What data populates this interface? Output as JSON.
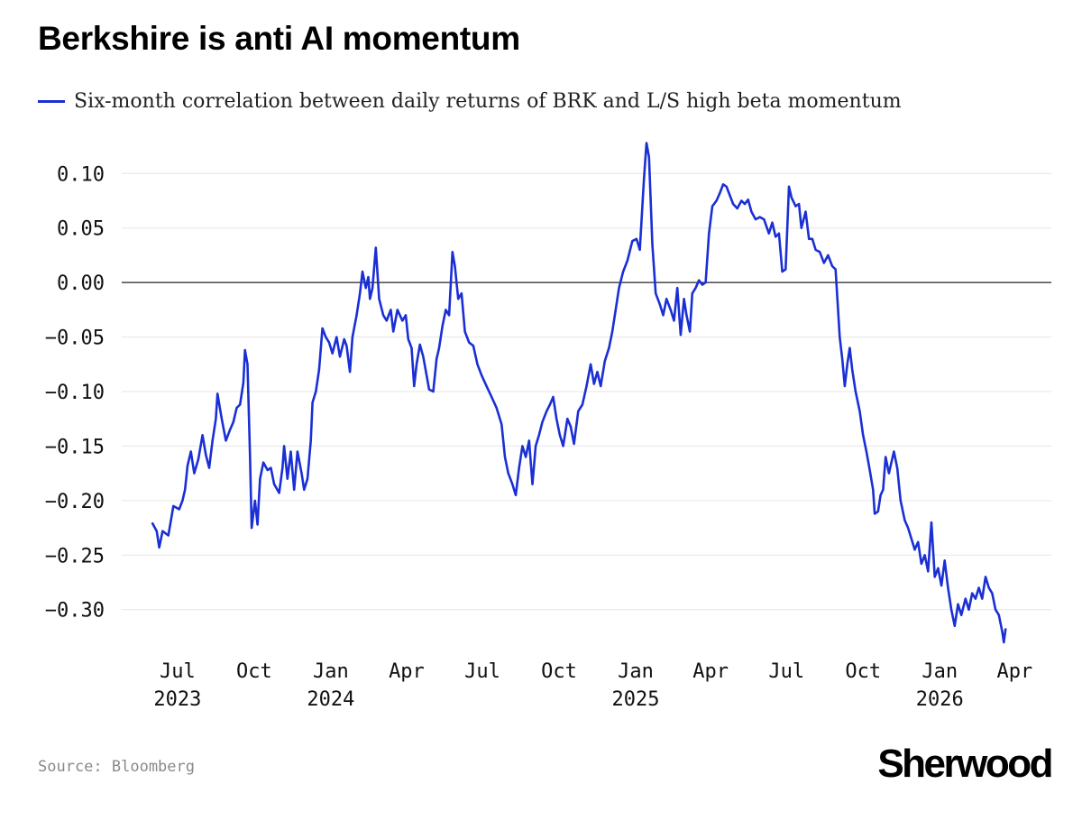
{
  "chart_data": {
    "type": "line",
    "title": "Berkshire is anti AI momentum",
    "xlabel": "",
    "ylabel": "",
    "ylim": [
      -0.335,
      0.135
    ],
    "xlim": [
      "2023-04-25",
      "2026-05-15"
    ],
    "y_ticks": [
      "0.10",
      "0.05",
      "0.00",
      "−0.05",
      "−0.10",
      "−0.15",
      "−0.20",
      "−0.25",
      "−0.30"
    ],
    "y_tick_values": [
      0.1,
      0.05,
      0.0,
      -0.05,
      -0.1,
      -0.15,
      -0.2,
      -0.25,
      -0.3
    ],
    "x_ticks": [
      {
        "date": "2023-07-01",
        "month": "Jul",
        "year": "2023"
      },
      {
        "date": "2023-10-01",
        "month": "Oct",
        "year": ""
      },
      {
        "date": "2024-01-01",
        "month": "Jan",
        "year": "2024"
      },
      {
        "date": "2024-04-01",
        "month": "Apr",
        "year": ""
      },
      {
        "date": "2024-07-01",
        "month": "Jul",
        "year": ""
      },
      {
        "date": "2024-10-01",
        "month": "Oct",
        "year": ""
      },
      {
        "date": "2025-01-01",
        "month": "Jan",
        "year": "2025"
      },
      {
        "date": "2025-04-01",
        "month": "Apr",
        "year": ""
      },
      {
        "date": "2025-07-01",
        "month": "Jul",
        "year": ""
      },
      {
        "date": "2025-10-01",
        "month": "Oct",
        "year": ""
      },
      {
        "date": "2026-01-01",
        "month": "Jan",
        "year": "2026"
      },
      {
        "date": "2026-04-01",
        "month": "Apr",
        "year": ""
      }
    ],
    "grid": true,
    "zero_line": true,
    "legend_position": "top-left",
    "series": [
      {
        "name": "Six-month correlation between daily returns of BRK and L/S high beta momentum",
        "color": "#1a2fd4",
        "points": [
          [
            "2023-06-01",
            -0.221
          ],
          [
            "2023-06-06",
            -0.228
          ],
          [
            "2023-06-09",
            -0.243
          ],
          [
            "2023-06-13",
            -0.228
          ],
          [
            "2023-06-20",
            -0.232
          ],
          [
            "2023-06-26",
            -0.205
          ],
          [
            "2023-07-03",
            -0.208
          ],
          [
            "2023-07-07",
            -0.2
          ],
          [
            "2023-07-10",
            -0.19
          ],
          [
            "2023-07-13",
            -0.168
          ],
          [
            "2023-07-17",
            -0.155
          ],
          [
            "2023-07-21",
            -0.175
          ],
          [
            "2023-07-26",
            -0.162
          ],
          [
            "2023-07-31",
            -0.14
          ],
          [
            "2023-08-04",
            -0.158
          ],
          [
            "2023-08-08",
            -0.17
          ],
          [
            "2023-08-12",
            -0.145
          ],
          [
            "2023-08-16",
            -0.125
          ],
          [
            "2023-08-18",
            -0.102
          ],
          [
            "2023-08-23",
            -0.125
          ],
          [
            "2023-08-28",
            -0.145
          ],
          [
            "2023-09-02",
            -0.135
          ],
          [
            "2023-09-06",
            -0.128
          ],
          [
            "2023-09-10",
            -0.115
          ],
          [
            "2023-09-14",
            -0.112
          ],
          [
            "2023-09-18",
            -0.092
          ],
          [
            "2023-09-20",
            -0.062
          ],
          [
            "2023-09-23",
            -0.075
          ],
          [
            "2023-09-26",
            -0.16
          ],
          [
            "2023-09-28",
            -0.225
          ],
          [
            "2023-10-02",
            -0.2
          ],
          [
            "2023-10-05",
            -0.222
          ],
          [
            "2023-10-08",
            -0.18
          ],
          [
            "2023-10-12",
            -0.165
          ],
          [
            "2023-10-17",
            -0.172
          ],
          [
            "2023-10-21",
            -0.17
          ],
          [
            "2023-10-25",
            -0.185
          ],
          [
            "2023-10-31",
            -0.193
          ],
          [
            "2023-11-04",
            -0.17
          ],
          [
            "2023-11-06",
            -0.15
          ],
          [
            "2023-11-10",
            -0.18
          ],
          [
            "2023-11-14",
            -0.155
          ],
          [
            "2023-11-18",
            -0.19
          ],
          [
            "2023-11-22",
            -0.155
          ],
          [
            "2023-11-27",
            -0.175
          ],
          [
            "2023-11-30",
            -0.19
          ],
          [
            "2023-12-04",
            -0.18
          ],
          [
            "2023-12-08",
            -0.145
          ],
          [
            "2023-12-10",
            -0.11
          ],
          [
            "2023-12-14",
            -0.1
          ],
          [
            "2023-12-18",
            -0.08
          ],
          [
            "2023-12-22",
            -0.042
          ],
          [
            "2023-12-26",
            -0.05
          ],
          [
            "2023-12-30",
            -0.055
          ],
          [
            "2024-01-03",
            -0.065
          ],
          [
            "2024-01-08",
            -0.05
          ],
          [
            "2024-01-12",
            -0.068
          ],
          [
            "2024-01-17",
            -0.052
          ],
          [
            "2024-01-20",
            -0.058
          ],
          [
            "2024-01-24",
            -0.082
          ],
          [
            "2024-01-27",
            -0.05
          ],
          [
            "2024-02-01",
            -0.03
          ],
          [
            "2024-02-05",
            -0.01
          ],
          [
            "2024-02-08",
            0.01
          ],
          [
            "2024-02-12",
            -0.005
          ],
          [
            "2024-02-15",
            0.005
          ],
          [
            "2024-02-17",
            -0.015
          ],
          [
            "2024-02-20",
            -0.005
          ],
          [
            "2024-02-24",
            0.032
          ],
          [
            "2024-02-28",
            -0.015
          ],
          [
            "2024-03-04",
            -0.03
          ],
          [
            "2024-03-08",
            -0.035
          ],
          [
            "2024-03-13",
            -0.025
          ],
          [
            "2024-03-16",
            -0.045
          ],
          [
            "2024-03-21",
            -0.025
          ],
          [
            "2024-03-27",
            -0.035
          ],
          [
            "2024-03-31",
            -0.03
          ],
          [
            "2024-04-03",
            -0.052
          ],
          [
            "2024-04-07",
            -0.06
          ],
          [
            "2024-04-10",
            -0.095
          ],
          [
            "2024-04-13",
            -0.075
          ],
          [
            "2024-04-17",
            -0.057
          ],
          [
            "2024-04-21",
            -0.068
          ],
          [
            "2024-04-25",
            -0.085
          ],
          [
            "2024-04-28",
            -0.098
          ],
          [
            "2024-05-03",
            -0.1
          ],
          [
            "2024-05-07",
            -0.07
          ],
          [
            "2024-05-10",
            -0.06
          ],
          [
            "2024-05-14",
            -0.04
          ],
          [
            "2024-05-18",
            -0.025
          ],
          [
            "2024-05-22",
            -0.03
          ],
          [
            "2024-05-26",
            0.028
          ],
          [
            "2024-05-29",
            0.015
          ],
          [
            "2024-06-02",
            -0.015
          ],
          [
            "2024-06-06",
            -0.01
          ],
          [
            "2024-06-10",
            -0.045
          ],
          [
            "2024-06-15",
            -0.055
          ],
          [
            "2024-06-20",
            -0.058
          ],
          [
            "2024-06-25",
            -0.075
          ],
          [
            "2024-06-30",
            -0.085
          ],
          [
            "2024-07-06",
            -0.095
          ],
          [
            "2024-07-12",
            -0.105
          ],
          [
            "2024-07-18",
            -0.115
          ],
          [
            "2024-07-24",
            -0.13
          ],
          [
            "2024-07-28",
            -0.16
          ],
          [
            "2024-08-01",
            -0.175
          ],
          [
            "2024-08-06",
            -0.185
          ],
          [
            "2024-08-10",
            -0.195
          ],
          [
            "2024-08-14",
            -0.17
          ],
          [
            "2024-08-18",
            -0.15
          ],
          [
            "2024-08-22",
            -0.16
          ],
          [
            "2024-08-26",
            -0.145
          ],
          [
            "2024-08-30",
            -0.185
          ],
          [
            "2024-09-03",
            -0.15
          ],
          [
            "2024-09-07",
            -0.14
          ],
          [
            "2024-09-11",
            -0.128
          ],
          [
            "2024-09-16",
            -0.118
          ],
          [
            "2024-09-20",
            -0.112
          ],
          [
            "2024-09-24",
            -0.105
          ],
          [
            "2024-09-28",
            -0.125
          ],
          [
            "2024-10-02",
            -0.14
          ],
          [
            "2024-10-06",
            -0.15
          ],
          [
            "2024-10-11",
            -0.125
          ],
          [
            "2024-10-15",
            -0.132
          ],
          [
            "2024-10-19",
            -0.148
          ],
          [
            "2024-10-24",
            -0.118
          ],
          [
            "2024-10-29",
            -0.112
          ],
          [
            "2024-11-03",
            -0.095
          ],
          [
            "2024-11-08",
            -0.075
          ],
          [
            "2024-11-12",
            -0.093
          ],
          [
            "2024-11-16",
            -0.082
          ],
          [
            "2024-11-20",
            -0.095
          ],
          [
            "2024-11-25",
            -0.072
          ],
          [
            "2024-11-30",
            -0.06
          ],
          [
            "2024-12-04",
            -0.045
          ],
          [
            "2024-12-08",
            -0.025
          ],
          [
            "2024-12-12",
            -0.005
          ],
          [
            "2024-12-17",
            0.01
          ],
          [
            "2024-12-22",
            0.02
          ],
          [
            "2024-12-28",
            0.038
          ],
          [
            "2025-01-02",
            0.04
          ],
          [
            "2025-01-06",
            0.03
          ],
          [
            "2025-01-11",
            0.095
          ],
          [
            "2025-01-14",
            0.128
          ],
          [
            "2025-01-17",
            0.115
          ],
          [
            "2025-01-21",
            0.035
          ],
          [
            "2025-01-25",
            -0.01
          ],
          [
            "2025-01-30",
            -0.02
          ],
          [
            "2025-02-03",
            -0.03
          ],
          [
            "2025-02-07",
            -0.015
          ],
          [
            "2025-02-12",
            -0.025
          ],
          [
            "2025-02-16",
            -0.035
          ],
          [
            "2025-02-20",
            -0.005
          ],
          [
            "2025-02-24",
            -0.048
          ],
          [
            "2025-02-28",
            -0.015
          ],
          [
            "2025-03-03",
            -0.03
          ],
          [
            "2025-03-07",
            -0.045
          ],
          [
            "2025-03-10",
            -0.01
          ],
          [
            "2025-03-14",
            -0.005
          ],
          [
            "2025-03-18",
            0.002
          ],
          [
            "2025-03-22",
            -0.002
          ],
          [
            "2025-03-26",
            0.0
          ],
          [
            "2025-03-30",
            0.045
          ],
          [
            "2025-04-03",
            0.07
          ],
          [
            "2025-04-08",
            0.075
          ],
          [
            "2025-04-12",
            0.082
          ],
          [
            "2025-04-16",
            0.09
          ],
          [
            "2025-04-20",
            0.088
          ],
          [
            "2025-04-24",
            0.08
          ],
          [
            "2025-04-28",
            0.072
          ],
          [
            "2025-05-03",
            0.068
          ],
          [
            "2025-05-08",
            0.075
          ],
          [
            "2025-05-12",
            0.072
          ],
          [
            "2025-05-16",
            0.076
          ],
          [
            "2025-05-20",
            0.065
          ],
          [
            "2025-05-25",
            0.058
          ],
          [
            "2025-05-30",
            0.06
          ],
          [
            "2025-06-04",
            0.058
          ],
          [
            "2025-06-10",
            0.045
          ],
          [
            "2025-06-14",
            0.055
          ],
          [
            "2025-06-18",
            0.042
          ],
          [
            "2025-06-22",
            0.045
          ],
          [
            "2025-06-26",
            0.01
          ],
          [
            "2025-06-30",
            0.012
          ],
          [
            "2025-07-04",
            0.088
          ],
          [
            "2025-07-07",
            0.078
          ],
          [
            "2025-07-12",
            0.07
          ],
          [
            "2025-07-16",
            0.072
          ],
          [
            "2025-07-19",
            0.05
          ],
          [
            "2025-07-24",
            0.065
          ],
          [
            "2025-07-28",
            0.04
          ],
          [
            "2025-08-01",
            0.04
          ],
          [
            "2025-08-05",
            0.03
          ],
          [
            "2025-08-10",
            0.028
          ],
          [
            "2025-08-15",
            0.018
          ],
          [
            "2025-08-20",
            0.025
          ],
          [
            "2025-08-25",
            0.015
          ],
          [
            "2025-08-29",
            0.012
          ],
          [
            "2025-09-03",
            -0.05
          ],
          [
            "2025-09-06",
            -0.07
          ],
          [
            "2025-09-09",
            -0.095
          ],
          [
            "2025-09-12",
            -0.075
          ],
          [
            "2025-09-15",
            -0.06
          ],
          [
            "2025-09-18",
            -0.08
          ],
          [
            "2025-09-22",
            -0.1
          ],
          [
            "2025-09-27",
            -0.118
          ],
          [
            "2025-10-01",
            -0.14
          ],
          [
            "2025-10-05",
            -0.155
          ],
          [
            "2025-10-09",
            -0.172
          ],
          [
            "2025-10-13",
            -0.19
          ],
          [
            "2025-10-15",
            -0.212
          ],
          [
            "2025-10-19",
            -0.21
          ],
          [
            "2025-10-22",
            -0.195
          ],
          [
            "2025-10-25",
            -0.19
          ],
          [
            "2025-10-28",
            -0.16
          ],
          [
            "2025-11-01",
            -0.175
          ],
          [
            "2025-11-04",
            -0.165
          ],
          [
            "2025-11-07",
            -0.155
          ],
          [
            "2025-11-11",
            -0.17
          ],
          [
            "2025-11-15",
            -0.2
          ],
          [
            "2025-11-20",
            -0.218
          ],
          [
            "2025-11-24",
            -0.225
          ],
          [
            "2025-11-28",
            -0.235
          ],
          [
            "2025-12-02",
            -0.245
          ],
          [
            "2025-12-06",
            -0.238
          ],
          [
            "2025-12-10",
            -0.258
          ],
          [
            "2025-12-14",
            -0.25
          ],
          [
            "2025-12-18",
            -0.265
          ],
          [
            "2025-12-22",
            -0.22
          ],
          [
            "2025-12-26",
            -0.27
          ],
          [
            "2025-12-30",
            -0.262
          ],
          [
            "2026-01-03",
            -0.278
          ],
          [
            "2026-01-07",
            -0.255
          ],
          [
            "2026-01-11",
            -0.28
          ],
          [
            "2026-01-15",
            -0.3
          ],
          [
            "2026-01-19",
            -0.315
          ],
          [
            "2026-01-23",
            -0.295
          ],
          [
            "2026-01-27",
            -0.305
          ],
          [
            "2026-02-01",
            -0.29
          ],
          [
            "2026-02-05",
            -0.3
          ],
          [
            "2026-02-09",
            -0.285
          ],
          [
            "2026-02-13",
            -0.29
          ],
          [
            "2026-02-17",
            -0.28
          ],
          [
            "2026-02-21",
            -0.29
          ],
          [
            "2026-02-25",
            -0.27
          ],
          [
            "2026-03-01",
            -0.28
          ],
          [
            "2026-03-05",
            -0.285
          ],
          [
            "2026-03-09",
            -0.3
          ],
          [
            "2026-03-13",
            -0.305
          ],
          [
            "2026-03-17",
            -0.32
          ],
          [
            "2026-03-19",
            -0.33
          ],
          [
            "2026-03-21",
            -0.318
          ]
        ]
      }
    ]
  },
  "source": "Source: Bloomberg",
  "brand": "Sherwood"
}
